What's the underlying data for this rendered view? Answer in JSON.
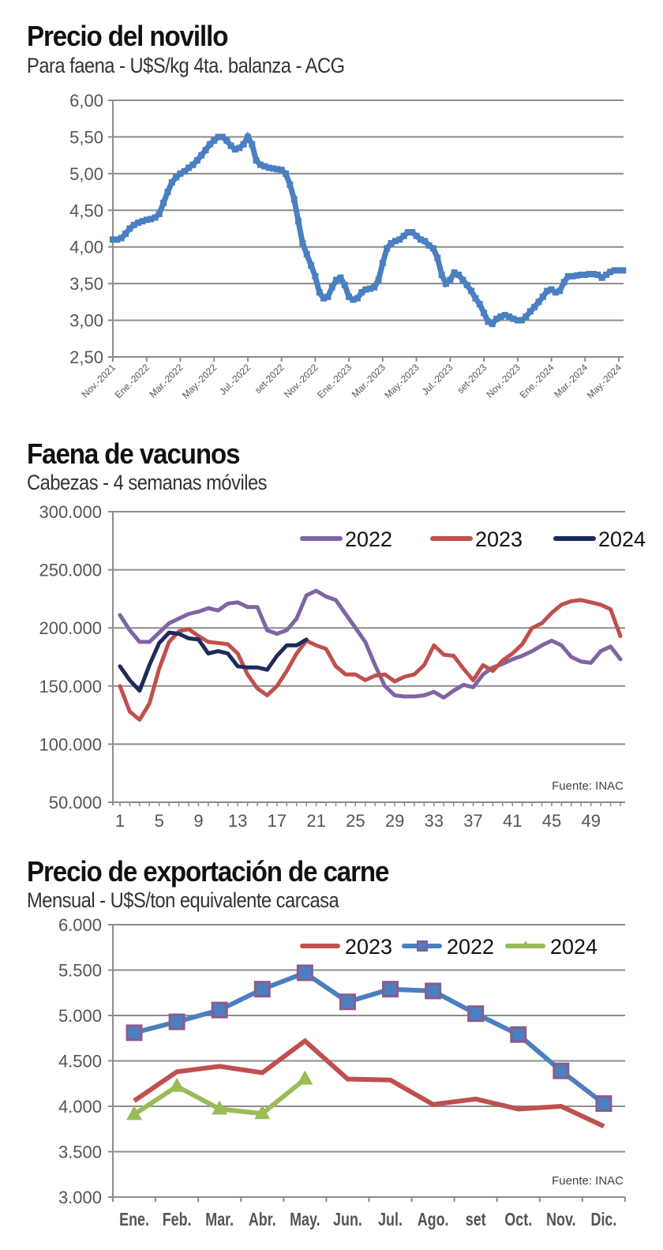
{
  "chart_data": [
    {
      "id": "novillo",
      "type": "line",
      "title": "Precio del novillo",
      "subtitle": "Para faena - U$S/kg 4ta. balanza - ACG",
      "xlabel": "",
      "ylabel": "",
      "ylim": [
        2.5,
        6.0
      ],
      "yticks": [
        "2,50",
        "3,00",
        "3,50",
        "4,00",
        "4,50",
        "5,00",
        "5,50",
        "6,00"
      ],
      "ytick_values": [
        2.5,
        3.0,
        3.5,
        4.0,
        4.5,
        5.0,
        5.5,
        6.0
      ],
      "xticks": [
        "Nov.-2021",
        "Ene.-2022",
        "Mar.-2022",
        "May.-2022",
        "Jul.-2022",
        "set-2022",
        "Nov.-2022",
        "Ene.-2023",
        "Mar.-2023",
        "May.-2023",
        "Jul.-2023",
        "set-2023",
        "Nov.-2023",
        "Ene.-2024",
        "Mar.-2024",
        "May.-2024"
      ],
      "grid": true,
      "legend": "none",
      "x_unit": "months since Nov-2021",
      "series": [
        {
          "name": "Novillo",
          "color": "#4a7fc1",
          "x": [
            0,
            0.25,
            0.5,
            0.75,
            1.0,
            1.25,
            1.5,
            1.75,
            2.0,
            2.25,
            2.5,
            2.75,
            3.0,
            3.25,
            3.5,
            3.75,
            4.0,
            4.25,
            4.5,
            4.75,
            5.0,
            5.25,
            5.5,
            5.75,
            6.0,
            6.25,
            6.5,
            6.75,
            7.0,
            7.25,
            7.5,
            7.75,
            8.0,
            8.25,
            8.5,
            8.75,
            9.0,
            9.25,
            9.5,
            9.75,
            10.0,
            10.25,
            10.5,
            10.75,
            11.0,
            11.25,
            11.5,
            11.75,
            12.0,
            12.25,
            12.5,
            12.75,
            13.0,
            13.25,
            13.5,
            13.75,
            14.0,
            14.25,
            14.5,
            14.75,
            15.0,
            15.25,
            15.5,
            15.75,
            16.0,
            16.25,
            16.5,
            16.75,
            17.0,
            17.25,
            17.5,
            17.75,
            18.0,
            18.25,
            18.5,
            18.75,
            19.0,
            19.25,
            19.5,
            19.75,
            20.0,
            20.25,
            20.5,
            20.75,
            21.0,
            21.25,
            21.5,
            21.75,
            22.0,
            22.25,
            22.5,
            22.75,
            23.0,
            23.25,
            23.5,
            23.75,
            24.0,
            24.25,
            24.5,
            24.75,
            25.0,
            25.25,
            25.5,
            25.75,
            26.0,
            26.25,
            26.5,
            26.75,
            27.0,
            27.25,
            27.5,
            27.75,
            28.0,
            28.25,
            28.5,
            28.75,
            29.0,
            29.25,
            29.5,
            29.75,
            30.0,
            30.25
          ],
          "values": [
            4.1,
            4.1,
            4.12,
            4.18,
            4.25,
            4.3,
            4.33,
            4.35,
            4.37,
            4.38,
            4.4,
            4.45,
            4.6,
            4.75,
            4.88,
            4.95,
            5.0,
            5.03,
            5.08,
            5.12,
            5.18,
            5.25,
            5.32,
            5.4,
            5.45,
            5.5,
            5.5,
            5.45,
            5.38,
            5.33,
            5.35,
            5.4,
            5.5,
            5.4,
            5.18,
            5.12,
            5.1,
            5.08,
            5.07,
            5.06,
            5.05,
            5.0,
            4.85,
            4.65,
            4.35,
            4.05,
            3.9,
            3.75,
            3.6,
            3.38,
            3.3,
            3.32,
            3.45,
            3.55,
            3.58,
            3.48,
            3.32,
            3.28,
            3.3,
            3.38,
            3.42,
            3.43,
            3.45,
            3.55,
            3.78,
            3.98,
            4.05,
            4.08,
            4.1,
            4.15,
            4.2,
            4.2,
            4.15,
            4.1,
            4.08,
            4.02,
            3.98,
            3.85,
            3.62,
            3.5,
            3.55,
            3.65,
            3.62,
            3.55,
            3.48,
            3.4,
            3.3,
            3.22,
            3.1,
            2.98,
            2.95,
            3.02,
            3.05,
            3.07,
            3.05,
            3.02,
            3.0,
            3.0,
            3.05,
            3.12,
            3.18,
            3.25,
            3.32,
            3.4,
            3.42,
            3.38,
            3.4,
            3.52,
            3.6,
            3.6,
            3.61,
            3.62,
            3.62,
            3.63,
            3.63,
            3.62,
            3.58,
            3.62,
            3.66,
            3.68,
            3.68,
            3.68
          ]
        }
      ]
    },
    {
      "id": "faena",
      "type": "line",
      "title": "Faena de vacunos",
      "subtitle": "Cabezas - 4 semanas móviles",
      "xlabel": "",
      "ylabel": "",
      "ylim": [
        50000,
        300000
      ],
      "yticks": [
        "50.000",
        "100.000",
        "150.000",
        "200.000",
        "250.000",
        "300.000"
      ],
      "ytick_values": [
        50000,
        100000,
        150000,
        200000,
        250000,
        300000
      ],
      "xticks": [
        "1",
        "5",
        "9",
        "13",
        "17",
        "21",
        "25",
        "29",
        "33",
        "37",
        "41",
        "45",
        "49"
      ],
      "xtick_values": [
        1,
        5,
        9,
        13,
        17,
        21,
        25,
        29,
        33,
        37,
        41,
        45,
        49
      ],
      "xlim": [
        1,
        52
      ],
      "grid": true,
      "legend": "top-right",
      "source": "Fuente: INAC",
      "series": [
        {
          "name": "2022",
          "color": "#8064a2",
          "x": [
            1,
            2,
            3,
            4,
            5,
            6,
            7,
            8,
            9,
            10,
            11,
            12,
            13,
            14,
            15,
            16,
            17,
            18,
            19,
            20,
            21,
            22,
            23,
            24,
            25,
            26,
            27,
            28,
            29,
            30,
            31,
            32,
            33,
            34,
            35,
            36,
            37,
            38,
            39,
            40,
            41,
            42,
            43,
            44,
            45,
            46,
            47,
            48,
            49,
            50,
            51,
            52
          ],
          "values": [
            211000,
            198000,
            188000,
            188000,
            196000,
            204000,
            208000,
            212000,
            214000,
            217000,
            215000,
            221000,
            222000,
            218000,
            218000,
            198000,
            195000,
            198000,
            208000,
            228000,
            232000,
            227000,
            224000,
            212000,
            200000,
            188000,
            168000,
            150000,
            142000,
            141000,
            141000,
            142000,
            145000,
            140000,
            146000,
            151000,
            149000,
            160000,
            166000,
            169000,
            173000,
            176000,
            180000,
            185000,
            189000,
            185000,
            175000,
            171000,
            170000,
            180000,
            184000,
            173000
          ]
        },
        {
          "name": "2023",
          "color": "#c0504d",
          "x": [
            1,
            2,
            3,
            4,
            5,
            6,
            7,
            8,
            9,
            10,
            11,
            12,
            13,
            14,
            15,
            16,
            17,
            18,
            19,
            20,
            21,
            22,
            23,
            24,
            25,
            26,
            27,
            28,
            29,
            30,
            31,
            32,
            33,
            34,
            35,
            36,
            37,
            38,
            39,
            40,
            41,
            42,
            43,
            44,
            45,
            46,
            47,
            48,
            49,
            50,
            51,
            52
          ],
          "values": [
            150000,
            128000,
            121000,
            135000,
            165000,
            188000,
            197000,
            199000,
            193000,
            188000,
            187000,
            186000,
            178000,
            160000,
            148000,
            142000,
            150000,
            163000,
            178000,
            189000,
            185000,
            182000,
            167000,
            160000,
            160000,
            155000,
            159000,
            160000,
            154000,
            158000,
            160000,
            168000,
            185000,
            177000,
            176000,
            165000,
            155000,
            168000,
            163000,
            172000,
            178000,
            186000,
            200000,
            204000,
            213000,
            220000,
            223000,
            224000,
            222000,
            220000,
            216000,
            193000
          ]
        },
        {
          "name": "2024",
          "color": "#1f2a5c",
          "x": [
            1,
            2,
            3,
            4,
            5,
            6,
            7,
            8,
            9,
            10,
            11,
            12,
            13,
            14,
            15,
            16,
            17,
            18,
            19,
            20
          ],
          "values": [
            167000,
            155000,
            146000,
            168000,
            187000,
            196000,
            195000,
            191000,
            190000,
            178000,
            180000,
            178000,
            167000,
            166000,
            166000,
            164000,
            176000,
            185000,
            185000,
            190000
          ]
        }
      ]
    },
    {
      "id": "exportacion",
      "type": "line",
      "title": "Precio de exportación de carne",
      "subtitle": "Mensual - U$S/ton equivalente carcasa",
      "xlabel": "",
      "ylabel": "",
      "ylim": [
        3000,
        6000
      ],
      "yticks": [
        "3.000",
        "3.500",
        "4.000",
        "4.500",
        "5.000",
        "5.500",
        "6.000"
      ],
      "ytick_values": [
        3000,
        3500,
        4000,
        4500,
        5000,
        5500,
        6000
      ],
      "categories": [
        "Ene.",
        "Feb.",
        "Mar.",
        "Abr.",
        "May.",
        "Jun.",
        "Jul.",
        "Ago.",
        "set",
        "Oct.",
        "Nov.",
        "Dic."
      ],
      "grid": true,
      "legend": "top-right",
      "source": "Fuente: INAC",
      "series": [
        {
          "name": "2023",
          "color": "#c0504d",
          "marker": "none",
          "values": [
            4060,
            4380,
            4440,
            4370,
            4720,
            4300,
            4290,
            4020,
            4080,
            3970,
            4000,
            3780
          ]
        },
        {
          "name": "2022",
          "color": "#4a7fc1",
          "marker": "square",
          "marker_color": "#8d5b8a",
          "values": [
            4810,
            4930,
            5060,
            5290,
            5470,
            5150,
            5290,
            5270,
            5020,
            4790,
            4390,
            4030
          ]
        },
        {
          "name": "2024",
          "color": "#9bbb59",
          "marker": "triangle",
          "values": [
            3910,
            4220,
            3970,
            3920,
            4300
          ]
        }
      ]
    }
  ]
}
